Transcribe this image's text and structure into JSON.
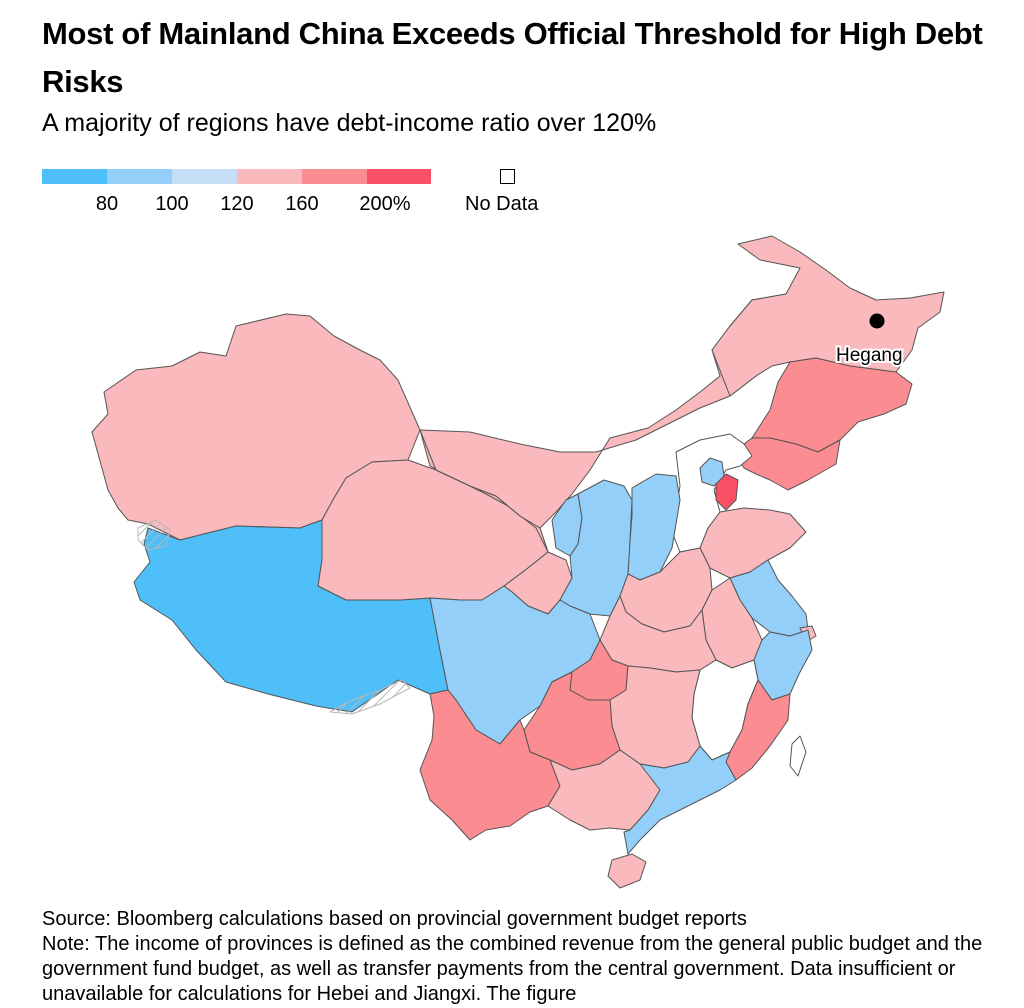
{
  "header": {
    "title": "Most of Mainland China Exceeds Official Threshold for High Debt Risks",
    "subtitle": "A majority of regions have debt-income ratio over 120%"
  },
  "legend": {
    "colors": [
      "#4fbffa",
      "#93cff8",
      "#c6def5",
      "#f9b9bd",
      "#fa8c92",
      "#fa5066"
    ],
    "ticks": [
      "80",
      "100",
      "120",
      "160",
      "200%"
    ],
    "no_data_label": "No Data"
  },
  "map": {
    "bins": {
      "lt80": "#4fbffa",
      "b80_100": "#93cff8",
      "b100_120": "#c6def5",
      "b120_160": "#f9b9bd",
      "b160_200": "#fa8c92",
      "gt200": "#fa5066",
      "no_data": "#ffffff"
    },
    "border_color": "#555555",
    "city": {
      "name": "Hegang"
    }
  },
  "footer": {
    "source": "Source: Bloomberg calculations based on provincial government budget reports",
    "note": "Note: The income of provinces is defined as the combined revenue from the general public budget and the government fund budget, as well as transfer payments from the central government. Data insufficient or unavailable for calculations for Hebei and Jiangxi. The figure"
  }
}
